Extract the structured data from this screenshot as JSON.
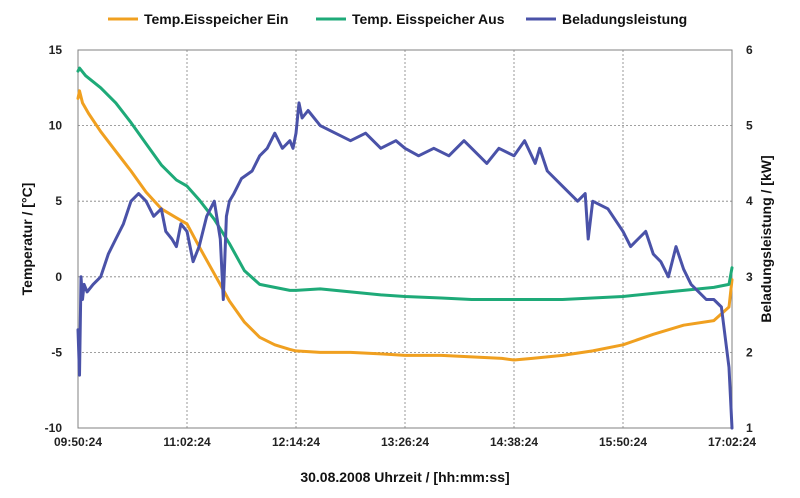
{
  "chart_data": {
    "type": "line",
    "xlabel": "30.08.2008 Uhrzeit / [hh:mm:ss]",
    "ylabel": "Temperatur / [°C]",
    "y2label": "Beladungsleistung / [kW]",
    "x_ticks": [
      "09:50:24",
      "11:02:24",
      "12:14:24",
      "13:26:24",
      "14:38:24",
      "15:50:24",
      "17:02:24"
    ],
    "xlim": [
      "09:50:24",
      "17:02:24"
    ],
    "ylim": [
      -10,
      15
    ],
    "y_ticks": [
      -10,
      -5,
      0,
      5,
      10,
      15
    ],
    "y2lim": [
      1,
      6
    ],
    "y2_ticks": [
      1,
      2,
      3,
      4,
      5,
      6
    ],
    "grid": true,
    "legend_position": "top",
    "series": [
      {
        "name": "Temp.Eisspeicher Ein",
        "axis": "left",
        "color": "#F0A020",
        "x": [
          "09:50:24",
          "09:51:24",
          "09:53:24",
          "09:57:24",
          "10:05:24",
          "10:15:24",
          "10:25:24",
          "10:35:24",
          "10:45:24",
          "10:55:24",
          "11:02:24",
          "11:10:24",
          "11:20:24",
          "11:30:24",
          "11:40:24",
          "11:50:24",
          "12:00:24",
          "12:10:24",
          "12:14:24",
          "12:30:24",
          "12:50:24",
          "13:10:24",
          "13:26:24",
          "13:50:24",
          "14:10:24",
          "14:30:24",
          "14:38:24",
          "14:50:24",
          "15:10:24",
          "15:30:24",
          "15:50:24",
          "16:10:24",
          "16:30:24",
          "16:50:24",
          "17:00:24",
          "17:02:24"
        ],
        "y": [
          11.8,
          12.3,
          11.5,
          10.8,
          9.6,
          8.3,
          7.0,
          5.6,
          4.5,
          3.9,
          3.5,
          2.0,
          0.2,
          -1.6,
          -3.0,
          -4.0,
          -4.5,
          -4.8,
          -4.9,
          -5.0,
          -5.0,
          -5.1,
          -5.2,
          -5.2,
          -5.3,
          -5.4,
          -5.5,
          -5.4,
          -5.2,
          -4.9,
          -4.5,
          -3.8,
          -3.2,
          -2.9,
          -2.0,
          -0.2
        ]
      },
      {
        "name": "Temp. Eisspeicher Aus",
        "axis": "left",
        "color": "#1EAA78",
        "x": [
          "09:50:24",
          "09:51:24",
          "09:55:24",
          "10:05:24",
          "10:15:24",
          "10:25:24",
          "10:35:24",
          "10:45:24",
          "10:55:24",
          "11:02:24",
          "11:10:24",
          "11:20:24",
          "11:30:24",
          "11:40:24",
          "11:50:24",
          "12:00:24",
          "12:10:24",
          "12:14:24",
          "12:30:24",
          "12:50:24",
          "13:10:24",
          "13:26:24",
          "13:50:24",
          "14:10:24",
          "14:30:24",
          "14:38:24",
          "14:50:24",
          "15:10:24",
          "15:30:24",
          "15:50:24",
          "16:10:24",
          "16:30:24",
          "16:50:24",
          "17:00:24",
          "17:02:24"
        ],
        "y": [
          13.6,
          13.8,
          13.3,
          12.5,
          11.5,
          10.2,
          8.8,
          7.4,
          6.4,
          6.0,
          5.1,
          3.8,
          2.2,
          0.4,
          -0.5,
          -0.7,
          -0.9,
          -0.9,
          -0.8,
          -1.0,
          -1.2,
          -1.3,
          -1.4,
          -1.5,
          -1.5,
          -1.5,
          -1.5,
          -1.5,
          -1.4,
          -1.3,
          -1.1,
          -0.9,
          -0.7,
          -0.5,
          0.6
        ]
      },
      {
        "name": "Beladungsleistung",
        "axis": "right",
        "color": "#4A52A8",
        "x": [
          "09:50:24",
          "09:51:24",
          "09:52:24",
          "09:53:24",
          "09:54:24",
          "09:56:24",
          "10:00:24",
          "10:05:24",
          "10:10:24",
          "10:15:24",
          "10:20:24",
          "10:25:24",
          "10:30:24",
          "10:35:24",
          "10:40:24",
          "10:45:24",
          "10:48:24",
          "10:52:24",
          "10:55:24",
          "10:58:24",
          "11:02:24",
          "11:06:24",
          "11:10:24",
          "11:15:24",
          "11:20:24",
          "11:24:24",
          "11:26:24",
          "11:28:24",
          "11:30:24",
          "11:33:24",
          "11:38:24",
          "11:45:24",
          "11:50:24",
          "11:55:24",
          "12:00:24",
          "12:05:24",
          "12:10:24",
          "12:12:24",
          "12:14:24",
          "12:16:24",
          "12:18:24",
          "12:22:24",
          "12:30:24",
          "12:40:24",
          "12:50:24",
          "13:00:24",
          "13:10:24",
          "13:20:24",
          "13:26:24",
          "13:35:24",
          "13:45:24",
          "13:55:24",
          "14:05:24",
          "14:15:24",
          "14:20:24",
          "14:28:24",
          "14:38:24",
          "14:45:24",
          "14:52:24",
          "14:55:24",
          "15:00:24",
          "15:10:24",
          "15:20:24",
          "15:25:24",
          "15:27:24",
          "15:30:24",
          "15:40:24",
          "15:50:24",
          "15:55:24",
          "16:00:24",
          "16:05:24",
          "16:10:24",
          "16:15:24",
          "16:20:24",
          "16:25:24",
          "16:30:24",
          "16:35:24",
          "16:40:24",
          "16:45:24",
          "16:50:24",
          "16:55:24",
          "17:00:24",
          "17:02:24"
        ],
        "y": [
          2.3,
          1.7,
          3.0,
          2.7,
          2.9,
          2.8,
          2.9,
          3.0,
          3.3,
          3.5,
          3.7,
          4.0,
          4.1,
          4.0,
          3.8,
          3.9,
          3.6,
          3.5,
          3.4,
          3.7,
          3.6,
          3.2,
          3.4,
          3.8,
          4.0,
          3.5,
          2.7,
          3.8,
          4.0,
          4.1,
          4.3,
          4.4,
          4.6,
          4.7,
          4.9,
          4.7,
          4.8,
          4.7,
          4.9,
          5.3,
          5.1,
          5.2,
          5.0,
          4.9,
          4.8,
          4.9,
          4.7,
          4.8,
          4.7,
          4.6,
          4.7,
          4.6,
          4.8,
          4.6,
          4.5,
          4.7,
          4.6,
          4.8,
          4.5,
          4.7,
          4.4,
          4.2,
          4.0,
          4.1,
          3.5,
          4.0,
          3.9,
          3.6,
          3.4,
          3.5,
          3.6,
          3.3,
          3.2,
          3.0,
          3.4,
          3.1,
          2.9,
          2.8,
          2.7,
          2.7,
          2.6,
          1.8,
          1.0
        ]
      }
    ]
  }
}
